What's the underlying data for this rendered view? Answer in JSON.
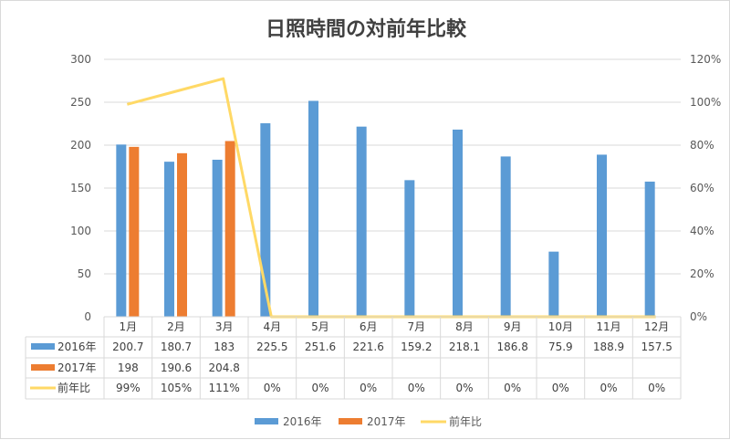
{
  "chart_data": {
    "type": "bar",
    "title": "日照時間の対前年比較",
    "categories": [
      "1月",
      "2月",
      "3月",
      "4月",
      "5月",
      "6月",
      "7月",
      "8月",
      "9月",
      "10月",
      "11月",
      "12月"
    ],
    "series": [
      {
        "name": "2016年",
        "type": "bar",
        "axis": "left",
        "color": "#5b9bd5",
        "values": [
          200.7,
          180.7,
          183,
          225.5,
          251.6,
          221.6,
          159.2,
          218.1,
          186.8,
          75.9,
          188.9,
          157.5
        ],
        "labels": [
          "200.7",
          "180.7",
          "183",
          "225.5",
          "251.6",
          "221.6",
          "159.2",
          "218.1",
          "186.8",
          "75.9",
          "188.9",
          "157.5"
        ]
      },
      {
        "name": "2017年",
        "type": "bar",
        "axis": "left",
        "color": "#ed7d31",
        "values": [
          198,
          190.6,
          204.8,
          null,
          null,
          null,
          null,
          null,
          null,
          null,
          null,
          null
        ],
        "labels": [
          "198",
          "190.6",
          "204.8",
          "",
          "",
          "",
          "",
          "",
          "",
          "",
          "",
          ""
        ]
      },
      {
        "name": "前年比",
        "type": "line",
        "axis": "right",
        "color": "#ffd966",
        "values": [
          0.99,
          1.05,
          1.11,
          0,
          0,
          0,
          0,
          0,
          0,
          0,
          0,
          0
        ],
        "labels": [
          "99%",
          "105%",
          "111%",
          "0%",
          "0%",
          "0%",
          "0%",
          "0%",
          "0%",
          "0%",
          "0%",
          "0%"
        ]
      }
    ],
    "y_left": {
      "min": 0,
      "max": 300,
      "ticks": [
        0,
        50,
        100,
        150,
        200,
        250,
        300
      ],
      "tick_labels": [
        "0",
        "50",
        "100",
        "150",
        "200",
        "250",
        "300"
      ]
    },
    "y_right": {
      "min": 0,
      "max": 1.2,
      "ticks": [
        0,
        0.2,
        0.4,
        0.6,
        0.8,
        1.0,
        1.2
      ],
      "tick_labels": [
        "0%",
        "20%",
        "40%",
        "60%",
        "80%",
        "100%",
        "120%"
      ]
    },
    "grid": true,
    "data_table": true,
    "legend": "bottom"
  }
}
